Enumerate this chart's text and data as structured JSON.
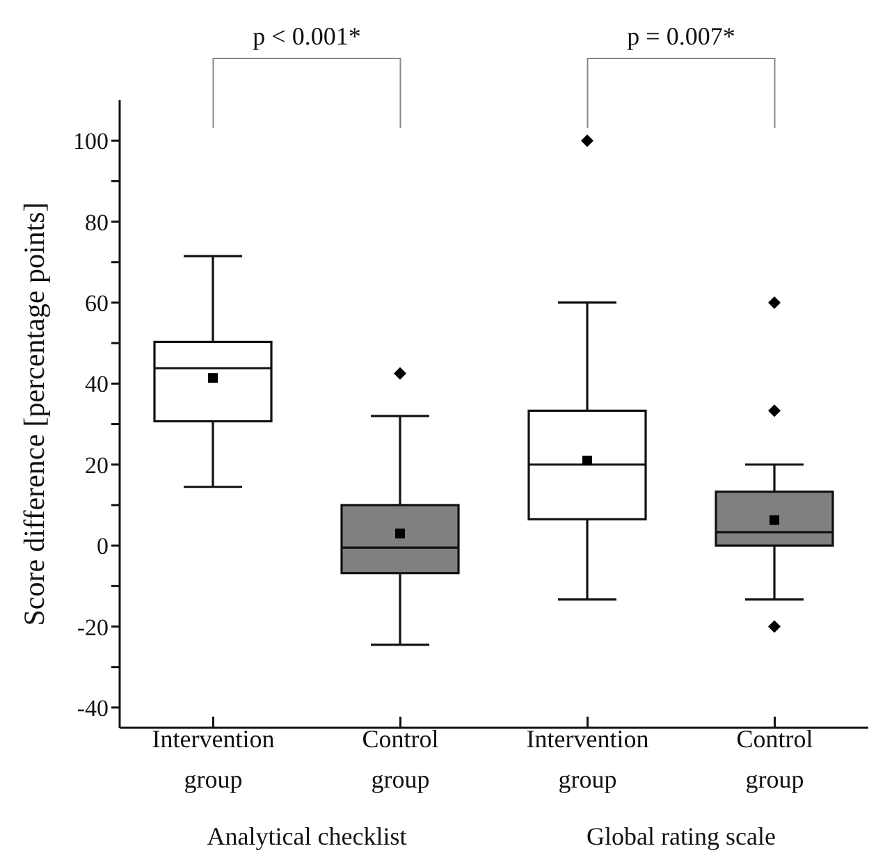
{
  "chart_data": {
    "type": "box",
    "ylabel": "Score difference [percentage points]",
    "categories": [
      "Intervention group",
      "Control group",
      "Intervention group",
      "Control group"
    ],
    "boxes": [
      {
        "low": 14.5,
        "q1": 30.7,
        "median": 43.8,
        "q3": 50.3,
        "high": 71.5,
        "mean": 41.4
      },
      {
        "low": -24.5,
        "q1": -6.8,
        "median": -0.5,
        "q3": 10,
        "high": 32,
        "mean": 3,
        "outliers": [
          42.5
        ]
      },
      {
        "low": -13.3,
        "q1": 6.5,
        "median": 20,
        "q3": 33.3,
        "high": 60,
        "mean": 21,
        "outliers": [
          100
        ]
      },
      {
        "low": -13.3,
        "q1": 0,
        "median": 3.3,
        "q3": 13.3,
        "high": 20,
        "mean": 6.3,
        "outliers": [
          -20,
          33.3,
          60
        ]
      }
    ],
    "colors": [
      "#ffffff",
      "#808080",
      "#ffffff",
      "#808080"
    ],
    "ylim": [
      -45,
      110
    ],
    "yticks": [
      -40,
      {
        "value": -30,
        "label": null
      },
      -20,
      {
        "value": -10,
        "label": null
      },
      0,
      {
        "value": 10,
        "label": null
      },
      20,
      {
        "value": 30,
        "label": null
      },
      40,
      {
        "value": 50,
        "label": null
      },
      60,
      {
        "value": 70,
        "label": null
      },
      80,
      {
        "value": 90,
        "label": null
      },
      100
    ],
    "annotations": [
      "p < 0.001*",
      "p = 0.007*",
      "Analytical checklist",
      "Global rating scale"
    ]
  }
}
